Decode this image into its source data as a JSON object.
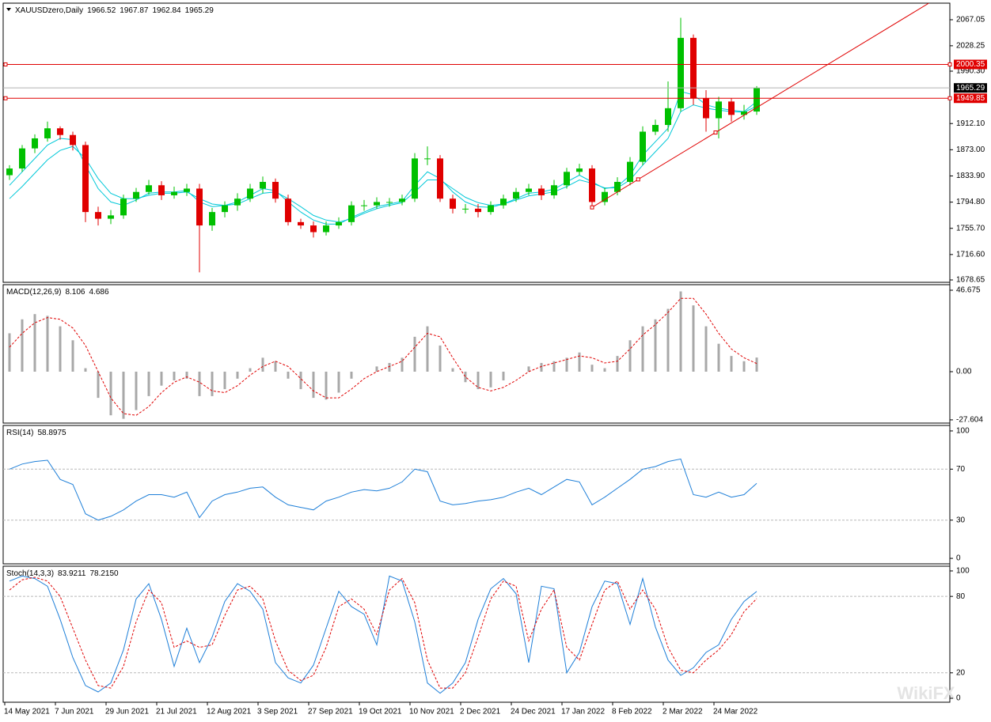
{
  "chart_data": [
    {
      "type": "candlestick",
      "title": "XAUUSDzero,Daily",
      "header_values": [
        1966.52,
        1967.87,
        1962.84,
        1965.29
      ],
      "categories": [
        "14 May 2021",
        null,
        null,
        null,
        "7 Jun 2021",
        null,
        null,
        null,
        "29 Jun 2021",
        null,
        null,
        null,
        "21 Jul 2021",
        null,
        null,
        null,
        "12 Aug 2021",
        null,
        null,
        null,
        "3 Sep 2021",
        null,
        null,
        null,
        "27 Sep 2021",
        null,
        null,
        null,
        "19 Oct 2021",
        null,
        null,
        null,
        "10 Nov 2021",
        null,
        null,
        null,
        "2 Dec 2021",
        null,
        null,
        null,
        "24 Dec 2021",
        null,
        null,
        null,
        "17 Jan 2022",
        null,
        null,
        null,
        "8 Feb 2022",
        null,
        null,
        null,
        "2 Mar 2022",
        null,
        null,
        null,
        "24 Mar 2022",
        null,
        null,
        null
      ],
      "open": [
        1835,
        1845,
        1875,
        1890,
        1905,
        1895,
        1880,
        1780,
        1770,
        1775,
        1800,
        1810,
        1820,
        1805,
        1810,
        1815,
        1760,
        1780,
        1790,
        1800,
        1815,
        1825,
        1800,
        1765,
        1760,
        1750,
        1760,
        1765,
        1790,
        1790,
        1795,
        1795,
        1800,
        1860,
        1860,
        1800,
        1785,
        1785,
        1780,
        1790,
        1800,
        1810,
        1815,
        1805,
        1820,
        1840,
        1845,
        1795,
        1810,
        1825,
        1855,
        1900,
        1910,
        1935,
        2040,
        1950,
        1920,
        1945,
        1925,
        1930
      ],
      "high": [
        1850,
        1880,
        1896,
        1915,
        1908,
        1900,
        1885,
        1788,
        1783,
        1806,
        1816,
        1828,
        1826,
        1818,
        1822,
        1822,
        1786,
        1796,
        1808,
        1822,
        1833,
        1830,
        1806,
        1770,
        1766,
        1766,
        1772,
        1796,
        1798,
        1802,
        1801,
        1806,
        1868,
        1878,
        1865,
        1806,
        1792,
        1792,
        1796,
        1806,
        1816,
        1822,
        1820,
        1828,
        1846,
        1852,
        1850,
        1816,
        1832,
        1862,
        1908,
        1918,
        1975,
        2070,
        2045,
        1962,
        1952,
        1950,
        1940,
        1968
      ],
      "low": [
        1828,
        1840,
        1868,
        1885,
        1888,
        1872,
        1765,
        1760,
        1762,
        1770,
        1795,
        1806,
        1798,
        1800,
        1804,
        1690,
        1752,
        1772,
        1782,
        1795,
        1808,
        1794,
        1760,
        1755,
        1742,
        1745,
        1755,
        1760,
        1782,
        1785,
        1788,
        1790,
        1795,
        1850,
        1795,
        1778,
        1778,
        1772,
        1776,
        1785,
        1795,
        1805,
        1798,
        1800,
        1815,
        1835,
        1785,
        1790,
        1805,
        1820,
        1850,
        1895,
        1900,
        1930,
        1940,
        1900,
        1890,
        1915,
        1918,
        1925
      ],
      "close": [
        1845,
        1875,
        1890,
        1905,
        1895,
        1880,
        1780,
        1770,
        1775,
        1800,
        1810,
        1820,
        1805,
        1810,
        1815,
        1760,
        1780,
        1790,
        1800,
        1815,
        1825,
        1800,
        1765,
        1760,
        1750,
        1760,
        1765,
        1790,
        1790,
        1795,
        1795,
        1800,
        1860,
        1860,
        1800,
        1785,
        1785,
        1780,
        1790,
        1800,
        1810,
        1815,
        1805,
        1820,
        1840,
        1845,
        1795,
        1810,
        1825,
        1855,
        1900,
        1910,
        1935,
        2040,
        1950,
        1920,
        1945,
        1925,
        1930,
        1965.29
      ],
      "up_color": "#00c000",
      "down_color": "#e00000",
      "overlays": [
        {
          "color": "#00c8d8",
          "values": [
            1820,
            1840,
            1860,
            1880,
            1890,
            1888,
            1850,
            1815,
            1795,
            1790,
            1798,
            1808,
            1810,
            1810,
            1812,
            1795,
            1788,
            1790,
            1795,
            1805,
            1815,
            1812,
            1795,
            1780,
            1768,
            1762,
            1762,
            1772,
            1780,
            1788,
            1792,
            1796,
            1820,
            1840,
            1830,
            1810,
            1795,
            1788,
            1787,
            1792,
            1800,
            1808,
            1810,
            1814,
            1825,
            1835,
            1825,
            1815,
            1818,
            1835,
            1865,
            1885,
            1905,
            1960,
            1955,
            1940,
            1935,
            1932,
            1930,
            1945
          ]
        },
        {
          "color": "#00c8d8",
          "values": [
            1800,
            1818,
            1838,
            1858,
            1872,
            1878,
            1860,
            1830,
            1808,
            1800,
            1800,
            1805,
            1808,
            1808,
            1810,
            1800,
            1792,
            1790,
            1792,
            1800,
            1808,
            1810,
            1800,
            1788,
            1775,
            1768,
            1765,
            1770,
            1778,
            1785,
            1790,
            1794,
            1810,
            1828,
            1828,
            1815,
            1802,
            1794,
            1790,
            1792,
            1798,
            1804,
            1807,
            1810,
            1818,
            1828,
            1823,
            1816,
            1816,
            1828,
            1850,
            1870,
            1890,
            1930,
            1940,
            1935,
            1932,
            1930,
            1929,
            1938
          ]
        }
      ],
      "levels": [
        {
          "value": 2000.35,
          "color": "#e00000"
        },
        {
          "value": 1949.85,
          "color": "#e00000"
        }
      ],
      "trendline": {
        "color": "#e00000",
        "values": [
          null,
          null,
          null,
          null,
          null,
          null,
          null,
          null,
          null,
          null,
          null,
          null,
          null,
          null,
          null,
          null,
          null,
          null,
          null,
          null,
          null,
          null,
          null,
          null,
          null,
          null,
          null,
          null,
          null,
          null,
          null,
          null,
          null,
          null,
          null,
          null,
          null,
          null,
          null,
          null,
          null,
          null,
          null,
          null,
          null,
          null,
          1787,
          null,
          null,
          null,
          null,
          null,
          null,
          null,
          null,
          null,
          null,
          null,
          null,
          1936
        ]
      },
      "ylim": [
        1675.1,
        2091.8
      ],
      "yticks": [
        {
          "value": 2067.05,
          "label": "2067.05"
        },
        {
          "value": 2028.2,
          "label": "2028.25"
        },
        {
          "value": 1990.3,
          "label": "1990.30"
        },
        {
          "value": 1912.1,
          "label": "1912.10"
        },
        {
          "value": 1873.0,
          "label": "1873.00"
        },
        {
          "value": 1833.9,
          "label": "1833.90"
        },
        {
          "value": 1794.8,
          "label": "1794.80"
        },
        {
          "value": 1755.7,
          "label": "1755.70"
        },
        {
          "value": 1716.6,
          "label": "1716.60"
        },
        {
          "value": 1678.65,
          "label": "1678.65"
        }
      ],
      "watermark": "WikiFX"
    },
    {
      "type": "macd",
      "title": "MACD(12,26,9)",
      "header_values": [
        8.106,
        4.686
      ],
      "histogram": {
        "color": "#a8a8a8",
        "values": [
          22,
          30,
          33,
          32,
          26,
          18,
          2,
          -15,
          -25,
          -27,
          -22,
          -14,
          -8,
          -5,
          -4,
          -14,
          -14,
          -10,
          -4,
          2,
          8,
          6,
          -4,
          -10,
          -15,
          -16,
          -12,
          -4,
          0,
          3,
          5,
          8,
          20,
          26,
          15,
          2,
          -6,
          -10,
          -9,
          -5,
          0,
          3,
          5,
          6,
          8,
          11,
          4,
          2,
          9,
          18,
          26,
          30,
          36,
          46,
          38,
          26,
          16,
          9,
          6,
          8.106
        ]
      },
      "signal": {
        "color": "#e00000",
        "values": [
          14,
          22,
          28,
          31,
          30,
          25,
          15,
          0,
          -15,
          -24,
          -25,
          -20,
          -12,
          -6,
          -3,
          -6,
          -11,
          -12,
          -8,
          -2,
          3,
          6,
          3,
          -4,
          -11,
          -15,
          -15,
          -10,
          -4,
          0,
          3,
          6,
          14,
          22,
          20,
          8,
          -3,
          -9,
          -11,
          -9,
          -5,
          0,
          3,
          5,
          7,
          9,
          8,
          5,
          6,
          13,
          21,
          27,
          34,
          42,
          42,
          33,
          22,
          13,
          8,
          4.686
        ]
      },
      "ylim": [
        -29.45,
        49.85
      ],
      "yticks": [
        46.675,
        {
          "value": 0,
          "label": "0.00"
        },
        -27.604
      ]
    },
    {
      "type": "line",
      "title": "RSI(14)",
      "header_values": [
        58.8975
      ],
      "series": [
        {
          "color": "#1e7fd8",
          "values": [
            70,
            74,
            76,
            77,
            62,
            58,
            35,
            30,
            33,
            38,
            45,
            50,
            50,
            48,
            52,
            32,
            45,
            50,
            52,
            55,
            56,
            48,
            42,
            40,
            38,
            45,
            48,
            52,
            54,
            53,
            55,
            60,
            70,
            68,
            45,
            42,
            43,
            45,
            46,
            48,
            52,
            55,
            50,
            56,
            62,
            60,
            42,
            48,
            55,
            62,
            70,
            72,
            76,
            78,
            50,
            48,
            52,
            48,
            50,
            58.8975
          ]
        }
      ],
      "levels": [
        70,
        30
      ],
      "ylim": [
        -4.3,
        104.3
      ],
      "yticks": [
        100,
        70,
        30,
        0
      ]
    },
    {
      "type": "line",
      "title": "Stoch(14,3,3)",
      "header_values": [
        83.9211,
        {
          "value": 78.215,
          "label": "78.2150"
        }
      ],
      "series": [
        {
          "color": "#1e7fd8",
          "values": [
            92,
            96,
            94,
            88,
            62,
            32,
            10,
            5,
            12,
            38,
            78,
            90,
            62,
            25,
            55,
            28,
            48,
            76,
            90,
            84,
            70,
            28,
            16,
            12,
            26,
            55,
            84,
            72,
            66,
            42,
            96,
            92,
            60,
            12,
            4,
            12,
            28,
            62,
            86,
            94,
            82,
            28,
            88,
            86,
            20,
            36,
            72,
            92,
            90,
            58,
            94,
            56,
            30,
            18,
            24,
            36,
            42,
            62,
            76,
            83.9211
          ]
        },
        {
          "color": "#e00000",
          "dashed": true,
          "values": [
            85,
            93,
            95,
            92,
            80,
            55,
            30,
            10,
            8,
            25,
            60,
            85,
            75,
            40,
            45,
            40,
            42,
            65,
            85,
            88,
            78,
            45,
            22,
            14,
            18,
            40,
            72,
            78,
            70,
            50,
            85,
            94,
            75,
            30,
            8,
            8,
            20,
            48,
            78,
            92,
            88,
            45,
            70,
            85,
            40,
            30,
            58,
            85,
            92,
            70,
            85,
            70,
            40,
            22,
            20,
            30,
            38,
            50,
            68,
            78.215
          ]
        }
      ],
      "levels": [
        80,
        20
      ],
      "ylim": [
        -3.1,
        103.7
      ],
      "yticks": [
        100,
        80,
        20,
        0
      ]
    }
  ]
}
